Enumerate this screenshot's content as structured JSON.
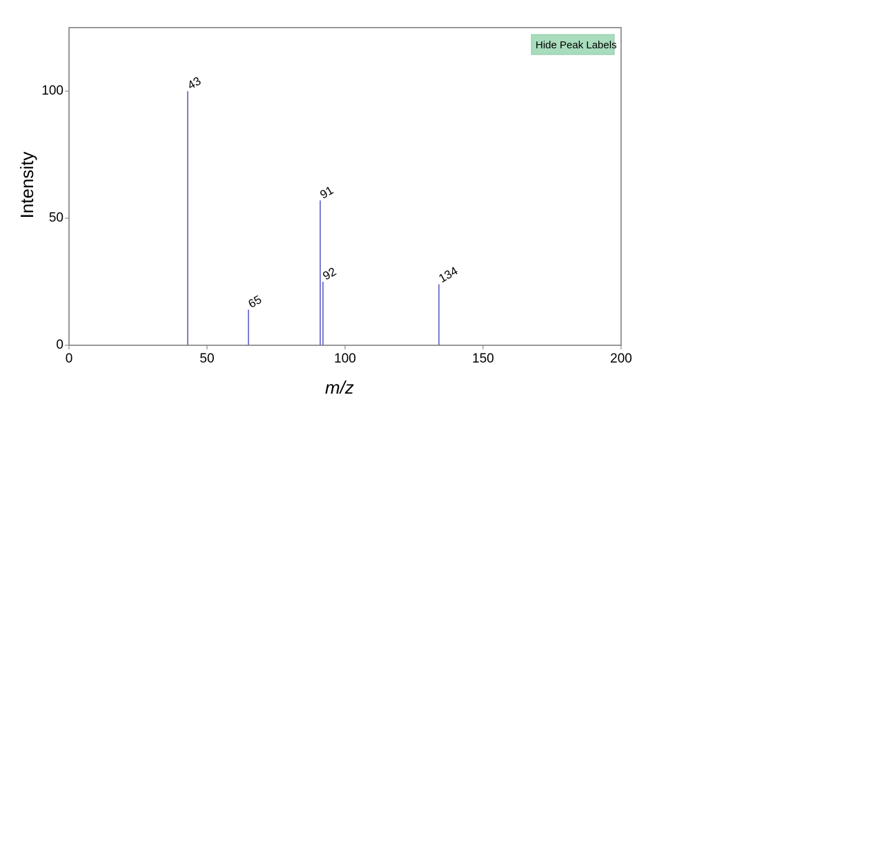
{
  "toggle_button": {
    "label": "Hide Peak Labels"
  },
  "colors": {
    "peak": "#7b7bd6",
    "button_fill": "#a8dcbc",
    "button_stroke": "#8cc9a3",
    "axis": "#777777"
  },
  "chart_data": {
    "type": "bar",
    "xlabel": "m/z",
    "ylabel": "Intensity",
    "xlim": [
      0,
      200
    ],
    "ylim": [
      0,
      125
    ],
    "xticks": [
      0,
      50,
      100,
      150,
      200
    ],
    "yticks": [
      0,
      50,
      100
    ],
    "grid": false,
    "peaks": [
      {
        "x": 43,
        "y": 100,
        "label": "43"
      },
      {
        "x": 65,
        "y": 14,
        "label": "65"
      },
      {
        "x": 91,
        "y": 57,
        "label": "91"
      },
      {
        "x": 92,
        "y": 25,
        "label": "92"
      },
      {
        "x": 134,
        "y": 24,
        "label": "134"
      }
    ]
  }
}
